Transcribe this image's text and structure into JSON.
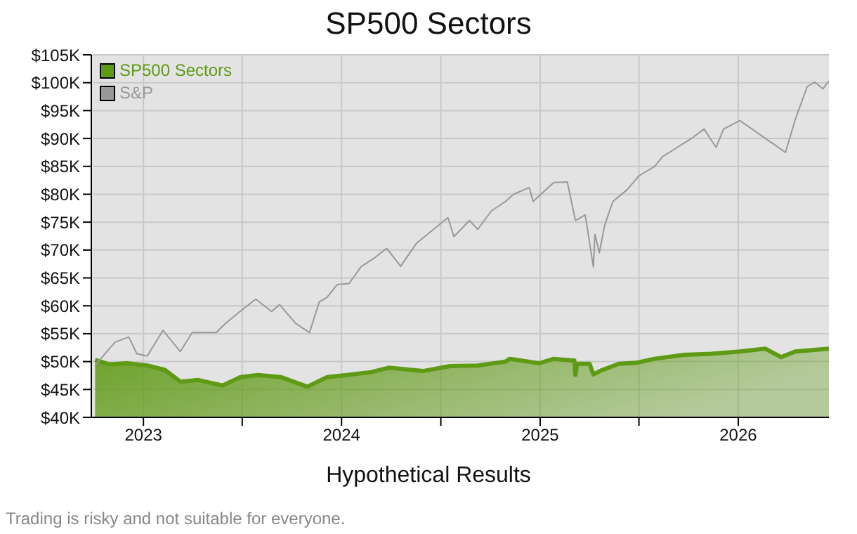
{
  "chart_data": {
    "type": "area",
    "title": "SP500 Sectors",
    "xlabel": "Hypothetical Results",
    "annotations": [
      "Trading is risky and not suitable for everyone."
    ],
    "xlim": [
      "2022-09-27",
      "2026-06-17"
    ],
    "xticks": [
      {
        "value": "2023-01-01",
        "label": "2023"
      },
      {
        "value": "2023-07-02",
        "label": null
      },
      {
        "value": "2024-01-01",
        "label": "2024"
      },
      {
        "value": "2024-07-02",
        "label": null
      },
      {
        "value": "2025-01-01",
        "label": "2025"
      },
      {
        "value": "2025-07-02",
        "label": null
      },
      {
        "value": "2026-01-01",
        "label": "2026"
      }
    ],
    "ylim": [
      40000,
      105000
    ],
    "yticks": [
      {
        "value": 40000,
        "label": "$40K"
      },
      {
        "value": 45000,
        "label": "$45K"
      },
      {
        "value": 50000,
        "label": "$50K"
      },
      {
        "value": 55000,
        "label": "$55K"
      },
      {
        "value": 60000,
        "label": "$60K"
      },
      {
        "value": 65000,
        "label": "$65K"
      },
      {
        "value": 70000,
        "label": "$70K"
      },
      {
        "value": 75000,
        "label": "$75K"
      },
      {
        "value": 80000,
        "label": "$80K"
      },
      {
        "value": 85000,
        "label": "$85K"
      },
      {
        "value": 90000,
        "label": "$90K"
      },
      {
        "value": 95000,
        "label": "$95K"
      },
      {
        "value": 100000,
        "label": "$100K"
      },
      {
        "value": 105000,
        "label": "$105K"
      }
    ],
    "grid": true,
    "legend": "top left",
    "series": [
      {
        "name": "SP500 Sectors",
        "color": "#5f9a14",
        "x": [
          "2022-10-04",
          "2022-10-30",
          "2022-12-02",
          "2023-01-08",
          "2023-02-10",
          "2023-03-10",
          "2023-04-12",
          "2023-05-27",
          "2023-06-28",
          "2023-07-31",
          "2023-09-12",
          "2023-10-30",
          "2023-12-05",
          "2024-01-11",
          "2024-02-24",
          "2024-03-28",
          "2024-05-30",
          "2024-07-19",
          "2024-09-08",
          "2024-10-29",
          "2024-11-06",
          "2024-12-30",
          "2025-01-26",
          "2025-02-28",
          "2025-03-05",
          "2025-03-07",
          "2025-03-10",
          "2025-04-02",
          "2025-04-09",
          "2025-04-23",
          "2025-05-26",
          "2025-06-28",
          "2025-07-31",
          "2025-09-23",
          "2025-11-13",
          "2026-01-04",
          "2026-02-20",
          "2026-03-21",
          "2026-04-16",
          "2026-06-17"
        ],
        "values": [
          50300,
          49500,
          49700,
          49300,
          48500,
          46400,
          46700,
          45700,
          47200,
          47600,
          47200,
          45500,
          47200,
          47600,
          48100,
          48900,
          48300,
          49200,
          49300,
          50000,
          50500,
          49700,
          50500,
          50200,
          50200,
          47600,
          49600,
          49600,
          47700,
          48400,
          49600,
          49800,
          50500,
          51200,
          51400,
          51800,
          52300,
          50800,
          51800,
          52300
        ]
      },
      {
        "name": "S&P",
        "type": "line",
        "color": "#999999",
        "x": [
          "2022-10-04",
          "2022-10-30",
          "2022-11-10",
          "2022-12-05",
          "2022-12-20",
          "2023-01-08",
          "2023-02-06",
          "2023-03-10",
          "2023-04-01",
          "2023-05-15",
          "2023-06-02",
          "2023-06-28",
          "2023-07-27",
          "2023-08-25",
          "2023-09-09",
          "2023-10-08",
          "2023-11-03",
          "2023-11-21",
          "2023-12-05",
          "2023-12-24",
          "2024-01-15",
          "2024-02-06",
          "2024-03-02",
          "2024-03-24",
          "2024-04-19",
          "2024-05-18",
          "2024-07-15",
          "2024-07-26",
          "2024-08-24",
          "2024-09-08",
          "2024-10-03",
          "2024-10-29",
          "2024-11-13",
          "2024-12-12",
          "2024-12-19",
          "2025-01-26",
          "2025-02-20",
          "2025-03-07",
          "2025-03-25",
          "2025-04-09",
          "2025-04-12",
          "2025-04-20",
          "2025-04-30",
          "2025-05-15",
          "2025-06-10",
          "2025-07-02",
          "2025-07-31",
          "2025-08-14",
          "2025-10-08",
          "2025-10-30",
          "2025-11-21",
          "2025-12-05",
          "2026-01-04",
          "2026-03-29",
          "2026-04-16",
          "2026-05-08",
          "2026-05-22",
          "2026-06-06",
          "2026-06-17"
        ],
        "values": [
          49300,
          52300,
          53500,
          54400,
          51400,
          51000,
          55600,
          51800,
          55200,
          55200,
          56900,
          59000,
          61200,
          59000,
          60200,
          56900,
          55200,
          60700,
          61500,
          63800,
          64000,
          67000,
          68600,
          70300,
          67100,
          71200,
          75800,
          72400,
          75300,
          73700,
          77000,
          78700,
          80000,
          81200,
          78700,
          82100,
          82200,
          75300,
          76300,
          67000,
          72800,
          69500,
          74500,
          78700,
          80800,
          83300,
          85000,
          86700,
          90100,
          91700,
          88400,
          91700,
          93200,
          87500,
          93400,
          99300,
          100100,
          98900,
          100300
        ]
      }
    ]
  }
}
